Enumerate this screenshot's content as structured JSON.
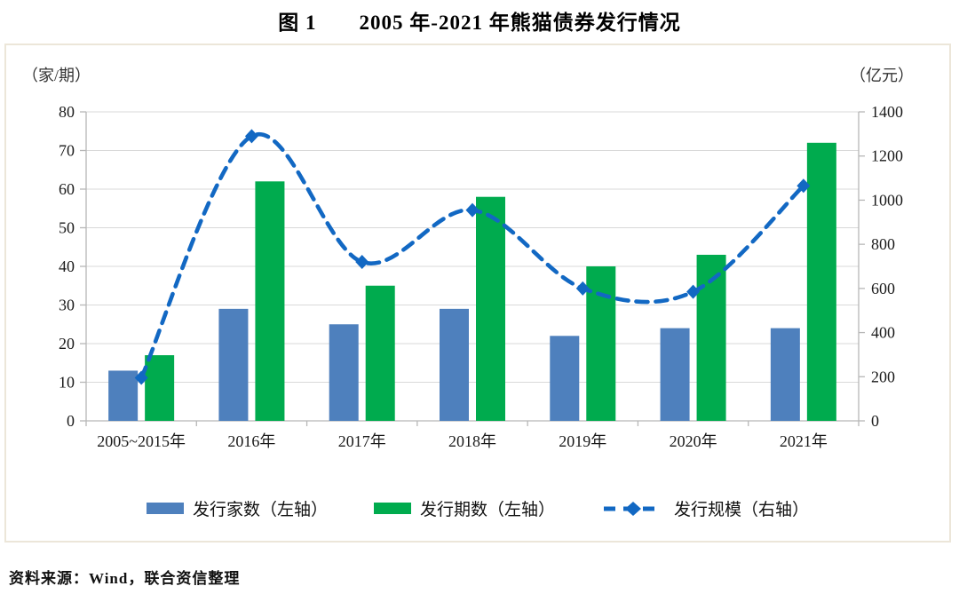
{
  "title": "图 1　　2005 年-2021 年熊猫债券发行情况",
  "source": "资料来源：Wind，联合资信整理",
  "chart_data": {
    "type": "bar",
    "subtype": "bar+line dual axis",
    "categories": [
      "2005~2015年",
      "2016年",
      "2017年",
      "2018年",
      "2019年",
      "2020年",
      "2021年"
    ],
    "series": [
      {
        "name": "发行家数（左轴）",
        "type": "bar",
        "axis": "left",
        "color": "#4e80bd",
        "values": [
          13,
          29,
          25,
          29,
          22,
          24,
          24
        ]
      },
      {
        "name": "发行期数（左轴）",
        "type": "bar",
        "axis": "left",
        "color": "#00ab4e",
        "values": [
          17,
          62,
          35,
          58,
          40,
          43,
          72
        ]
      },
      {
        "name": "发行规模（右轴）",
        "type": "line",
        "line_style": "dashed smoothed",
        "marker": "diamond",
        "axis": "right",
        "color": "#1268c3",
        "values": [
          195,
          1290,
          720,
          955,
          600,
          585,
          1065
        ]
      }
    ],
    "left_axis": {
      "unit": "（家/期）",
      "min": 0,
      "max": 80,
      "step": 10
    },
    "right_axis": {
      "unit": "（亿元）",
      "min": 0,
      "max": 1400,
      "step": 200
    },
    "grid": "horizontal",
    "legend_position": "bottom",
    "colors": {
      "grid": "#d9d9d9",
      "axis": "#b7b7b7",
      "tick_text": "#1a1a1a",
      "frame_border": "#ece6d9"
    }
  }
}
